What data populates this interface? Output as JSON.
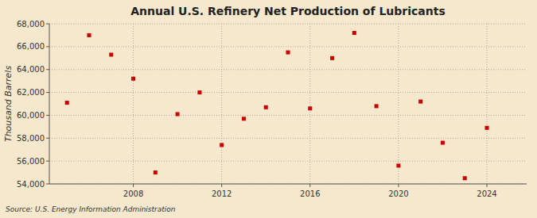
{
  "chart_data": {
    "type": "scatter",
    "title": "Annual U.S. Refinery Net Production of Lubricants",
    "ylabel": "Thousand Barrels",
    "source": "Source: U.S. Energy Information Administration",
    "x": [
      2005,
      2006,
      2007,
      2008,
      2009,
      2010,
      2011,
      2012,
      2013,
      2014,
      2015,
      2016,
      2017,
      2018,
      2019,
      2020,
      2021,
      2022,
      2023,
      2024
    ],
    "values": [
      61100,
      67000,
      65300,
      63200,
      55000,
      60100,
      62000,
      57400,
      59700,
      60700,
      65500,
      60600,
      65000,
      67200,
      60800,
      55600,
      61200,
      57600,
      54500,
      58900
    ],
    "color": "#cc0000",
    "marker": "square",
    "xlim": [
      2004.2,
      2025.8
    ],
    "xticks": [
      2008,
      2012,
      2016,
      2020,
      2024
    ],
    "ylim": [
      54000,
      68001
    ],
    "yticks": [
      {
        "value": 54000,
        "label": "54,000"
      },
      {
        "value": 56000,
        "label": "56,000"
      },
      {
        "value": 58000,
        "label": "58,000"
      },
      {
        "value": 60000,
        "label": "60,000"
      },
      {
        "value": 62000,
        "label": "62,000"
      },
      {
        "value": 64000,
        "label": "64,000"
      },
      {
        "value": 66000,
        "label": "66,000"
      },
      {
        "value": 68000,
        "label": "68,000"
      }
    ],
    "grid": true
  }
}
